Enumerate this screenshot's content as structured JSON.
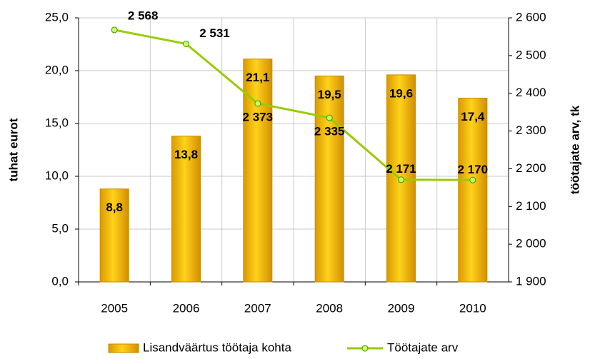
{
  "chart_data": {
    "type": "bar",
    "categories": [
      "2005",
      "2006",
      "2007",
      "2008",
      "2009",
      "2010"
    ],
    "y_label": "tuhat eurot",
    "y2_label": "töötajate arv, tk",
    "series": [
      {
        "name": "Lisandväärtus töötaja kohta",
        "type": "bar",
        "color": "#f0b400",
        "values": [
          8.8,
          13.8,
          21.1,
          19.5,
          19.6,
          17.4
        ],
        "value_labels": [
          "8,8",
          "13,8",
          "21,1",
          "19,5",
          "19,6",
          "17,4"
        ]
      },
      {
        "name": "Töötajate arv",
        "type": "line",
        "axis": "y2",
        "color": "#99cc00",
        "values": [
          2568,
          2531,
          2373,
          2335,
          2171,
          2170
        ],
        "value_labels": [
          "2 568",
          "2 531",
          "2 373",
          "2 335",
          "2 171",
          "2 170"
        ]
      }
    ],
    "ylim": [
      0,
      25
    ],
    "yticks": [
      {
        "value": 0,
        "label": "0,0"
      },
      {
        "value": 5,
        "label": "5,0"
      },
      {
        "value": 10,
        "label": "10,0"
      },
      {
        "value": 15,
        "label": "15,0"
      },
      {
        "value": 20,
        "label": "20,0"
      },
      {
        "value": 25,
        "label": "25,0"
      }
    ],
    "y2lim": [
      1900,
      2600
    ],
    "y2ticks": [
      {
        "value": 1900,
        "label": "1 900"
      },
      {
        "value": 2000,
        "label": "2 000"
      },
      {
        "value": 2100,
        "label": "2 100"
      },
      {
        "value": 2200,
        "label": "2 200"
      },
      {
        "value": 2300,
        "label": "2 300"
      },
      {
        "value": 2400,
        "label": "2 400"
      },
      {
        "value": 2500,
        "label": "2 500"
      },
      {
        "value": 2600,
        "label": "2 600"
      }
    ],
    "grid": true,
    "legend": "bottom"
  }
}
